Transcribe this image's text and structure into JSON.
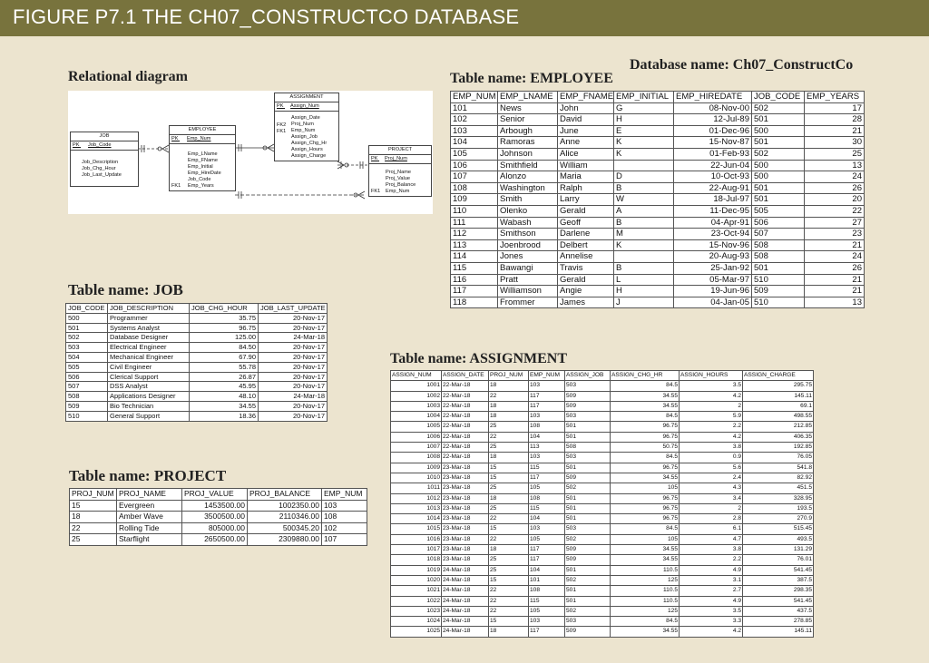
{
  "figure_title": "FIGURE P7.1  THE CH07_CONSTRUCTCO DATABASE",
  "database_name": "Database name: Ch07_ConstructCo",
  "relational_diagram": {
    "title": "Relational diagram",
    "job": {
      "name": "JOB",
      "pk": "PK",
      "key": "Job_Code",
      "attrs": [
        "Job_Description",
        "Job_Chg_Hour",
        "Job_Last_Update"
      ]
    },
    "employee": {
      "name": "EMPLOYEE",
      "pk": "PK",
      "key": "Emp_Num",
      "fk": "FK1",
      "attrs": [
        "Emp_LName",
        "Emp_FName",
        "Emp_Initial",
        "Emp_HireDate",
        "Job_Code",
        "Emp_Years"
      ]
    },
    "assignment": {
      "name": "ASSIGNMENT",
      "pk": "PK",
      "key": "Assign_Num",
      "fks": [
        "FK2",
        "FK1"
      ],
      "attrs": [
        "Assign_Date",
        "Proj_Num",
        "Emp_Num",
        "Assign_Job",
        "Assign_Chg_Hr",
        "Assign_Hours",
        "Assign_Charge"
      ]
    },
    "project": {
      "name": "PROJECT",
      "pk": "PK",
      "key": "Proj_Num",
      "fk": "FK1",
      "attrs": [
        "Proj_Name",
        "Proj_Value",
        "Proj_Balance",
        "Emp_Num"
      ]
    }
  },
  "employee": {
    "title": "Table name: EMPLOYEE",
    "columns": [
      "EMP_NUM",
      "EMP_LNAME",
      "EMP_FNAME",
      "EMP_INITIAL",
      "EMP_HIREDATE",
      "JOB_CODE",
      "EMP_YEARS"
    ],
    "rows": [
      [
        "101",
        "News",
        "John",
        "G",
        "08-Nov-00",
        "502",
        "17"
      ],
      [
        "102",
        "Senior",
        "David",
        "H",
        "12-Jul-89",
        "501",
        "28"
      ],
      [
        "103",
        "Arbough",
        "June",
        "E",
        "01-Dec-96",
        "500",
        "21"
      ],
      [
        "104",
        "Ramoras",
        "Anne",
        "K",
        "15-Nov-87",
        "501",
        "30"
      ],
      [
        "105",
        "Johnson",
        "Alice",
        "K",
        "01-Feb-93",
        "502",
        "25"
      ],
      [
        "106",
        "Smithfield",
        "William",
        "",
        "22-Jun-04",
        "500",
        "13"
      ],
      [
        "107",
        "Alonzo",
        "Maria",
        "D",
        "10-Oct-93",
        "500",
        "24"
      ],
      [
        "108",
        "Washington",
        "Ralph",
        "B",
        "22-Aug-91",
        "501",
        "26"
      ],
      [
        "109",
        "Smith",
        "Larry",
        "W",
        "18-Jul-97",
        "501",
        "20"
      ],
      [
        "110",
        "Olenko",
        "Gerald",
        "A",
        "11-Dec-95",
        "505",
        "22"
      ],
      [
        "111",
        "Wabash",
        "Geoff",
        "B",
        "04-Apr-91",
        "506",
        "27"
      ],
      [
        "112",
        "Smithson",
        "Darlene",
        "M",
        "23-Oct-94",
        "507",
        "23"
      ],
      [
        "113",
        "Joenbrood",
        "Delbert",
        "K",
        "15-Nov-96",
        "508",
        "21"
      ],
      [
        "114",
        "Jones",
        "Annelise",
        "",
        "20-Aug-93",
        "508",
        "24"
      ],
      [
        "115",
        "Bawangi",
        "Travis",
        "B",
        "25-Jan-92",
        "501",
        "26"
      ],
      [
        "116",
        "Pratt",
        "Gerald",
        "L",
        "05-Mar-97",
        "510",
        "21"
      ],
      [
        "117",
        "Williamson",
        "Angie",
        "H",
        "19-Jun-96",
        "509",
        "21"
      ],
      [
        "118",
        "Frommer",
        "James",
        "J",
        "04-Jan-05",
        "510",
        "13"
      ]
    ]
  },
  "job": {
    "title": "Table name: JOB",
    "columns": [
      "JOB_CODE",
      "JOB_DESCRIPTION",
      "JOB_CHG_HOUR",
      "JOB_LAST_UPDATE"
    ],
    "rows": [
      [
        "500",
        "Programmer",
        "35.75",
        "20-Nov-17"
      ],
      [
        "501",
        "Systems Analyst",
        "96.75",
        "20-Nov-17"
      ],
      [
        "502",
        "Database Designer",
        "125.00",
        "24-Mar-18"
      ],
      [
        "503",
        "Electrical Engineer",
        "84.50",
        "20-Nov-17"
      ],
      [
        "504",
        "Mechanical Engineer",
        "67.90",
        "20-Nov-17"
      ],
      [
        "505",
        "Civil Engineer",
        "55.78",
        "20-Nov-17"
      ],
      [
        "506",
        "Clerical Support",
        "26.87",
        "20-Nov-17"
      ],
      [
        "507",
        "DSS Analyst",
        "45.95",
        "20-Nov-17"
      ],
      [
        "508",
        "Applications Designer",
        "48.10",
        "24-Mar-18"
      ],
      [
        "509",
        "Bio Technician",
        "34.55",
        "20-Nov-17"
      ],
      [
        "510",
        "General Support",
        "18.36",
        "20-Nov-17"
      ]
    ]
  },
  "assignment": {
    "title": "Table name: ASSIGNMENT",
    "columns": [
      "ASSIGN_NUM",
      "ASSIGN_DATE",
      "PROJ_NUM",
      "EMP_NUM",
      "ASSIGN_JOB",
      "ASSIGN_CHG_HR",
      "ASSIGN_HOURS",
      "ASSIGN_CHARGE"
    ],
    "rows": [
      [
        "1001",
        "22-Mar-18",
        "18",
        "103",
        "503",
        "84.5",
        "3.5",
        "295.75"
      ],
      [
        "1002",
        "22-Mar-18",
        "22",
        "117",
        "509",
        "34.55",
        "4.2",
        "145.11"
      ],
      [
        "1003",
        "22-Mar-18",
        "18",
        "117",
        "509",
        "34.55",
        "2",
        "69.1"
      ],
      [
        "1004",
        "22-Mar-18",
        "18",
        "103",
        "503",
        "84.5",
        "5.9",
        "498.55"
      ],
      [
        "1005",
        "22-Mar-18",
        "25",
        "108",
        "501",
        "96.75",
        "2.2",
        "212.85"
      ],
      [
        "1006",
        "22-Mar-18",
        "22",
        "104",
        "501",
        "96.75",
        "4.2",
        "406.35"
      ],
      [
        "1007",
        "22-Mar-18",
        "25",
        "113",
        "508",
        "50.75",
        "3.8",
        "192.85"
      ],
      [
        "1008",
        "22-Mar-18",
        "18",
        "103",
        "503",
        "84.5",
        "0.9",
        "76.05"
      ],
      [
        "1009",
        "23-Mar-18",
        "15",
        "115",
        "501",
        "96.75",
        "5.6",
        "541.8"
      ],
      [
        "1010",
        "23-Mar-18",
        "15",
        "117",
        "509",
        "34.55",
        "2.4",
        "82.92"
      ],
      [
        "1011",
        "23-Mar-18",
        "25",
        "105",
        "502",
        "105",
        "4.3",
        "451.5"
      ],
      [
        "1012",
        "23-Mar-18",
        "18",
        "108",
        "501",
        "96.75",
        "3.4",
        "328.95"
      ],
      [
        "1013",
        "23-Mar-18",
        "25",
        "115",
        "501",
        "96.75",
        "2",
        "193.5"
      ],
      [
        "1014",
        "23-Mar-18",
        "22",
        "104",
        "501",
        "96.75",
        "2.8",
        "270.9"
      ],
      [
        "1015",
        "23-Mar-18",
        "15",
        "103",
        "503",
        "84.5",
        "6.1",
        "515.45"
      ],
      [
        "1016",
        "23-Mar-18",
        "22",
        "105",
        "502",
        "105",
        "4.7",
        "493.5"
      ],
      [
        "1017",
        "23-Mar-18",
        "18",
        "117",
        "509",
        "34.55",
        "3.8",
        "131.29"
      ],
      [
        "1018",
        "23-Mar-18",
        "25",
        "117",
        "509",
        "34.55",
        "2.2",
        "76.01"
      ],
      [
        "1019",
        "24-Mar-18",
        "25",
        "104",
        "501",
        "110.5",
        "4.9",
        "541.45"
      ],
      [
        "1020",
        "24-Mar-18",
        "15",
        "101",
        "502",
        "125",
        "3.1",
        "387.5"
      ],
      [
        "1021",
        "24-Mar-18",
        "22",
        "108",
        "501",
        "110.5",
        "2.7",
        "298.35"
      ],
      [
        "1022",
        "24-Mar-18",
        "22",
        "115",
        "501",
        "110.5",
        "4.9",
        "541.45"
      ],
      [
        "1023",
        "24-Mar-18",
        "22",
        "105",
        "502",
        "125",
        "3.5",
        "437.5"
      ],
      [
        "1024",
        "24-Mar-18",
        "15",
        "103",
        "503",
        "84.5",
        "3.3",
        "278.85"
      ],
      [
        "1025",
        "24-Mar-18",
        "18",
        "117",
        "509",
        "34.55",
        "4.2",
        "145.11"
      ]
    ]
  },
  "project": {
    "title": "Table name: PROJECT",
    "columns": [
      "PROJ_NUM",
      "PROJ_NAME",
      "PROJ_VALUE",
      "PROJ_BALANCE",
      "EMP_NUM"
    ],
    "rows": [
      [
        "15",
        "Evergreen",
        "1453500.00",
        "1002350.00",
        "103"
      ],
      [
        "18",
        "Amber Wave",
        "3500500.00",
        "2110346.00",
        "108"
      ],
      [
        "22",
        "Rolling Tide",
        "805000.00",
        "500345.20",
        "102"
      ],
      [
        "25",
        "Starflight",
        "2650500.00",
        "2309880.00",
        "107"
      ]
    ]
  }
}
